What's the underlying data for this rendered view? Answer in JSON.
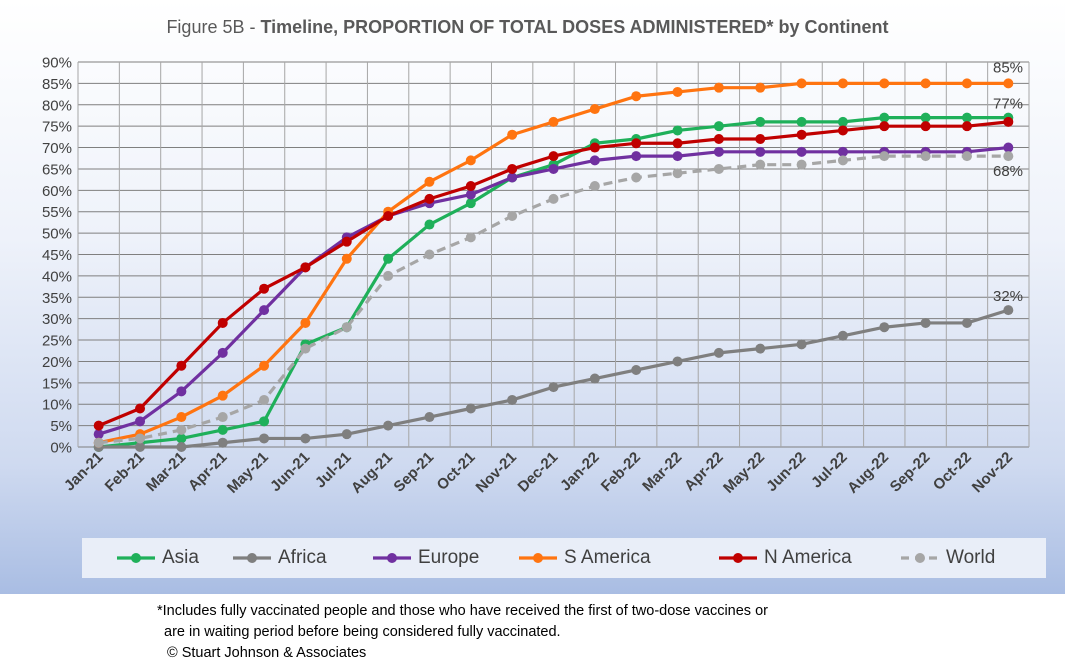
{
  "title": {
    "prefix": "Figure 5B - ",
    "main": "Timeline, PROPORTION OF TOTAL DOSES ADMINISTERED* by Continent"
  },
  "chart_data": {
    "type": "line",
    "x": [
      "Jan-21",
      "Feb-21",
      "Mar-21",
      "Apr-21",
      "May-21",
      "Jun-21",
      "Jul-21",
      "Aug-21",
      "Sep-21",
      "Oct-21",
      "Nov-21",
      "Dec-21",
      "Jan-22",
      "Feb-22",
      "Mar-22",
      "Apr-22",
      "May-22",
      "Jun-22",
      "Jul-22",
      "Aug-22",
      "Sep-22",
      "Oct-22",
      "Nov-22"
    ],
    "ylim": [
      0,
      90
    ],
    "yticks": [
      "0%",
      "5%",
      "10%",
      "15%",
      "20%",
      "25%",
      "30%",
      "35%",
      "40%",
      "45%",
      "50%",
      "55%",
      "60%",
      "65%",
      "70%",
      "75%",
      "80%",
      "85%",
      "90%"
    ],
    "grid": true,
    "legend_position": "bottom",
    "series": [
      {
        "name": "Asia",
        "color": "#1fb05a",
        "dashed": false,
        "values": [
          0,
          1,
          2,
          4,
          6,
          24,
          28,
          44,
          52,
          57,
          63,
          66,
          71,
          72,
          74,
          75,
          76,
          76,
          76,
          77,
          77,
          77,
          77
        ]
      },
      {
        "name": "Africa",
        "color": "#7f7f7f",
        "dashed": false,
        "values": [
          0,
          0,
          0,
          1,
          2,
          2,
          3,
          5,
          7,
          9,
          11,
          14,
          16,
          18,
          20,
          22,
          23,
          24,
          26,
          28,
          29,
          29,
          32
        ]
      },
      {
        "name": "Europe",
        "color": "#7030a0",
        "dashed": false,
        "values": [
          3,
          6,
          13,
          22,
          32,
          42,
          49,
          54,
          57,
          59,
          63,
          65,
          67,
          68,
          68,
          69,
          69,
          69,
          69,
          69,
          69,
          69,
          70
        ]
      },
      {
        "name": "S America",
        "color": "#ff7410",
        "dashed": false,
        "values": [
          1,
          3,
          7,
          12,
          19,
          29,
          44,
          55,
          62,
          67,
          73,
          76,
          79,
          82,
          83,
          84,
          84,
          85,
          85,
          85,
          85,
          85,
          85
        ]
      },
      {
        "name": "N America",
        "color": "#c00000",
        "dashed": false,
        "values": [
          5,
          9,
          19,
          29,
          37,
          42,
          48,
          54,
          58,
          61,
          65,
          68,
          70,
          71,
          71,
          72,
          72,
          73,
          74,
          75,
          75,
          75,
          76
        ]
      },
      {
        "name": "World",
        "color": "#a6a6a6",
        "dashed": true,
        "values": [
          1,
          2,
          4,
          7,
          11,
          23,
          28,
          40,
          45,
          49,
          54,
          58,
          61,
          63,
          64,
          65,
          66,
          66,
          67,
          68,
          68,
          68,
          68
        ]
      }
    ],
    "annotations": [
      {
        "text": "85%",
        "series": "S America"
      },
      {
        "text": "77%",
        "series": "Asia"
      },
      {
        "text": "68%",
        "series": "World"
      },
      {
        "text": "32%",
        "series": "Africa"
      }
    ]
  },
  "footnote": {
    "line1": "*Includes fully vaccinated people and those who have received the first of two-dose vaccines or",
    "line2": "are in waiting period before being considered fully vaccinated.",
    "line3": "© Stuart Johnson & Associates"
  }
}
